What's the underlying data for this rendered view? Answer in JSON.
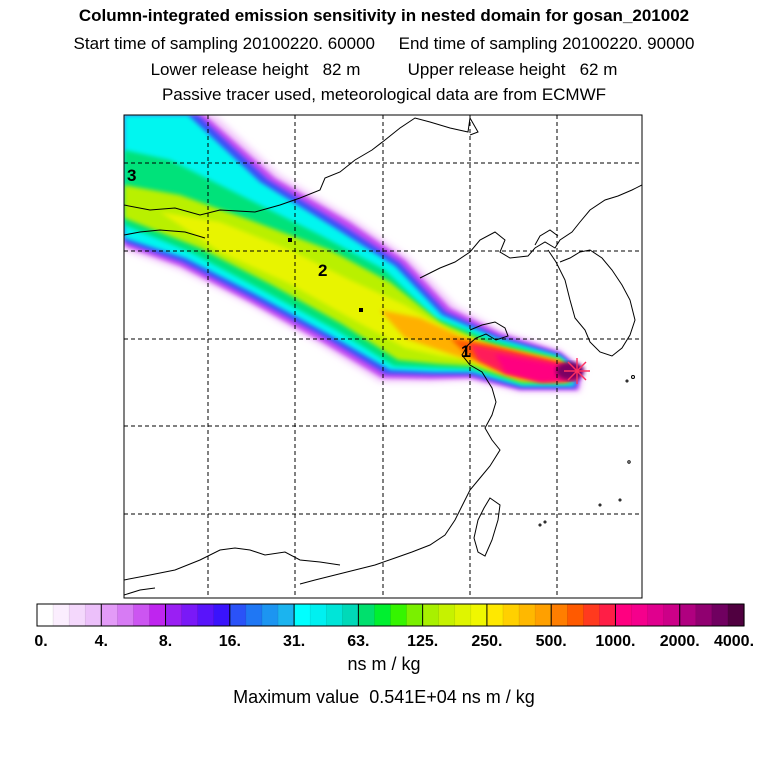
{
  "header": {
    "title": "Column-integrated emission sensitivity in nested domain for gosan_201002",
    "sampling_line": "Start time of sampling 20100220. 60000     End time of sampling 20100220. 90000",
    "release_line": "Lower release height   82 m          Upper release height   62 m",
    "tracer_line": "Passive tracer used, meteorological data are from ECMWF"
  },
  "map": {
    "labels": [
      {
        "id": "1",
        "text": "1"
      },
      {
        "id": "2",
        "text": "2"
      },
      {
        "id": "3",
        "text": "3"
      }
    ],
    "receptor": "star-marker"
  },
  "colorbar": {
    "tick_labels": [
      "0.",
      "4.",
      "8.",
      "16.",
      "31.",
      "63.",
      "125.",
      "250.",
      "500.",
      "1000.",
      "2000.",
      "4000."
    ],
    "colors": [
      "#ffffff",
      "#fbeefe",
      "#f4d8fc",
      "#ecc0fa",
      "#e39bf7",
      "#d77bf4",
      "#cc55f1",
      "#bf25ef",
      "#9a1ff3",
      "#7a19f7",
      "#5914fa",
      "#3a13fc",
      "#2a52f8",
      "#1f77f4",
      "#1c95f1",
      "#1bb4ef",
      "#00ffff",
      "#00f0f0",
      "#00e5d8",
      "#00d9b8",
      "#00e06d",
      "#00f030",
      "#35f500",
      "#7af000",
      "#a8f000",
      "#c6f200",
      "#dff500",
      "#f0f700",
      "#ffe800",
      "#ffd000",
      "#ffb800",
      "#ffa000",
      "#ff7e00",
      "#ff5a00",
      "#ff3a1e",
      "#ff1e46",
      "#ff0080",
      "#f5008c",
      "#e0008e",
      "#cc0088",
      "#b00080",
      "#900070",
      "#700060",
      "#500040"
    ],
    "unit": "ns m / kg"
  },
  "footer": {
    "max_value": "Maximum value  0.541E+04 ns m / kg"
  }
}
